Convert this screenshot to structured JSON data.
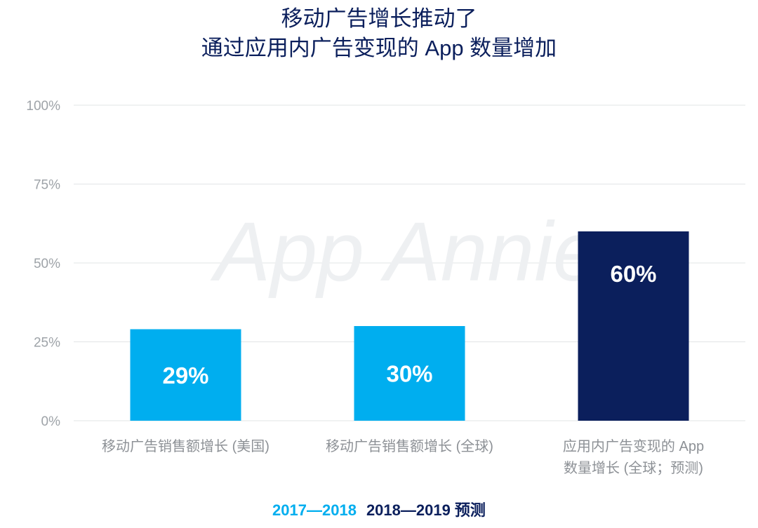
{
  "title": {
    "line1": "移动广告增长推动了",
    "line2": "通过应用内广告变现的 App 数量增加"
  },
  "watermark": "App Annie",
  "colors": {
    "title": "#0b1f5c",
    "series_2017_2018": "#00aeef",
    "series_2018_2019": "#0b1f5c",
    "grid": "#e2e4e6",
    "axis_text": "#9ea3a8"
  },
  "legend": {
    "items": [
      {
        "label": "2017—2018",
        "color": "#00aeef"
      },
      {
        "label": "2018—2019 预测",
        "color": "#0b1f5c"
      }
    ]
  },
  "chart_data": {
    "type": "bar",
    "title": "移动广告增长推动了 通过应用内广告变现的 App 数量增加",
    "categories": [
      [
        "移动广告销售额增长 (美国)"
      ],
      [
        "移动广告销售额增长 (全球)"
      ],
      [
        "应用内广告变现的 App",
        "数量增长 (全球；预测)"
      ]
    ],
    "values": [
      29,
      30,
      60
    ],
    "labels": [
      "29%",
      "30%",
      "60%"
    ],
    "series_index": [
      0,
      0,
      1
    ],
    "series": [
      {
        "name": "2017—2018",
        "color": "#00aeef"
      },
      {
        "name": "2018—2019 预测",
        "color": "#0b1f5c"
      }
    ],
    "yticks": [
      0,
      25,
      50,
      75,
      100
    ],
    "ytick_labels": [
      "0%",
      "25%",
      "50%",
      "75%",
      "100%"
    ],
    "ylim": [
      0,
      100
    ],
    "xlabel": "",
    "ylabel": "",
    "grid": true,
    "legend_position": "bottom-center"
  }
}
